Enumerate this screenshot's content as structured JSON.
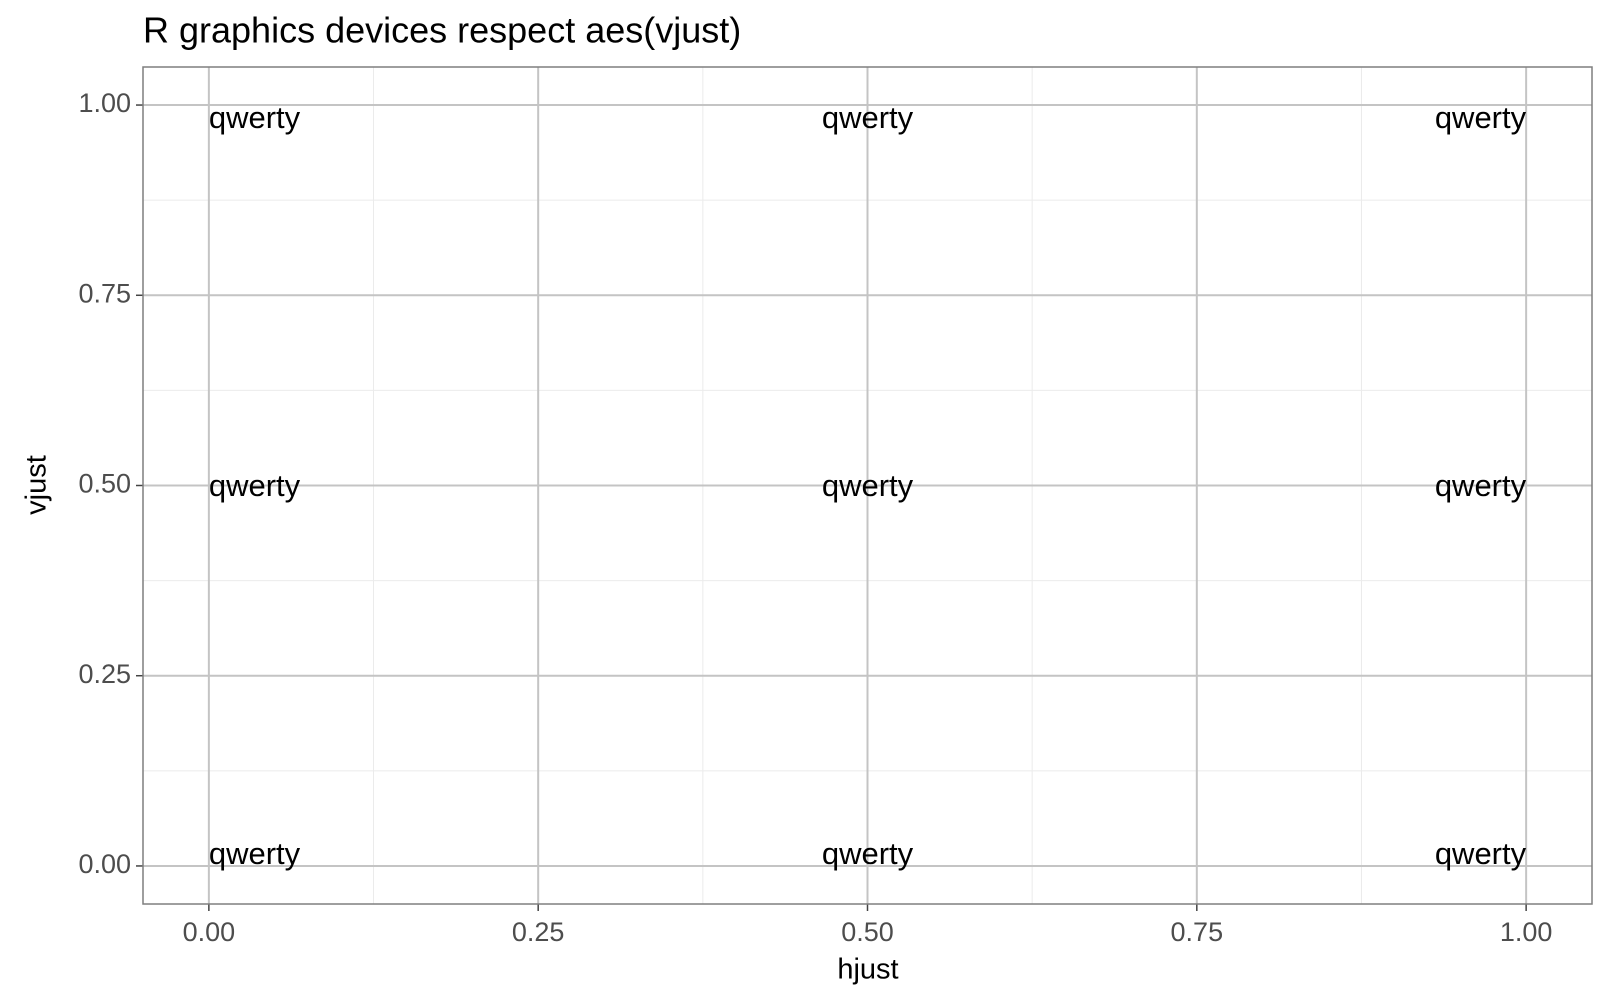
{
  "chart_data": {
    "type": "text",
    "title": "R graphics devices respect aes(vjust)",
    "x_label": "hjust",
    "y_label": "vjust",
    "x": [
      0,
      0.5,
      1,
      0,
      0.5,
      1,
      0,
      0.5,
      1
    ],
    "y": [
      0,
      0,
      0,
      0.5,
      0.5,
      0.5,
      1,
      1,
      1
    ],
    "labels": [
      "qwerty",
      "qwerty",
      "qwerty",
      "qwerty",
      "qwerty",
      "qwerty",
      "qwerty",
      "qwerty",
      "qwerty"
    ],
    "color": "#000000",
    "xlim": [
      -0.05,
      1.05
    ],
    "ylim": [
      -0.05,
      1.05
    ],
    "xticks": [
      {
        "value": 0,
        "label": "0.00"
      },
      {
        "value": 0.25,
        "label": "0.25"
      },
      {
        "value": 0.5,
        "label": "0.50"
      },
      {
        "value": 0.75,
        "label": "0.75"
      },
      {
        "value": 1,
        "label": "1.00"
      }
    ],
    "yticks": [
      {
        "value": 0,
        "label": "0.00"
      },
      {
        "value": 0.25,
        "label": "0.25"
      },
      {
        "value": 0.5,
        "label": "0.50"
      },
      {
        "value": 0.75,
        "label": "0.75"
      },
      {
        "value": 1,
        "label": "1.00"
      }
    ],
    "grid": true
  }
}
